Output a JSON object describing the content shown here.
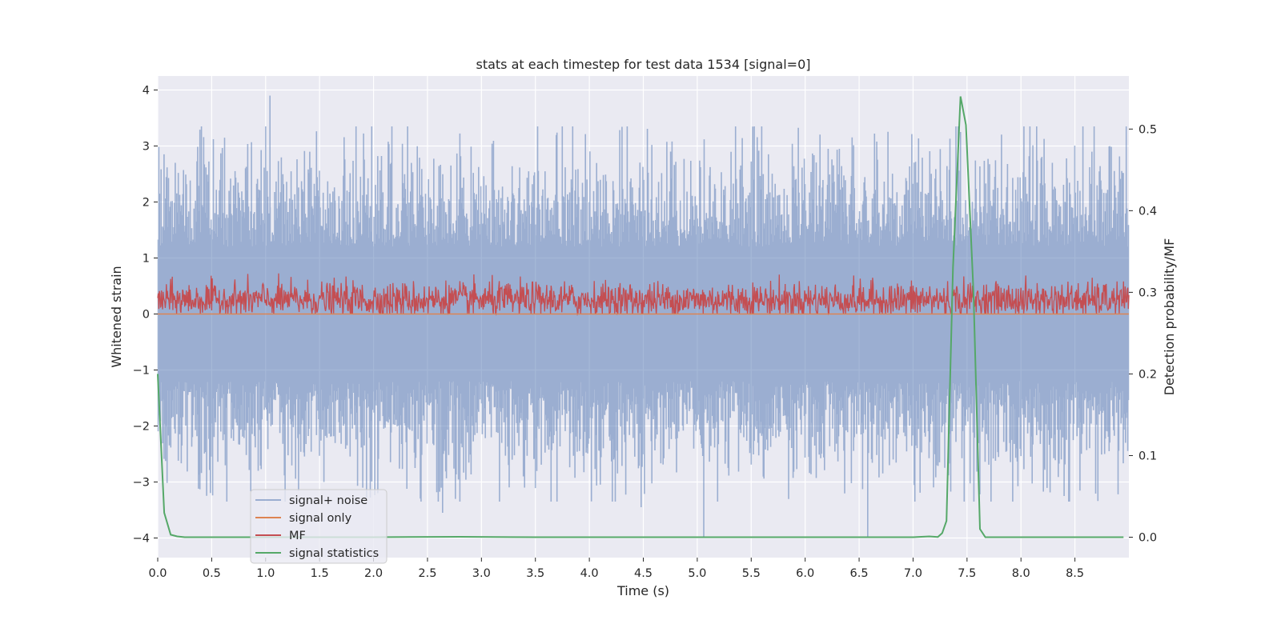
{
  "chart_data": {
    "type": "line",
    "title": "stats at each timestep for test data 1534 [signal=0]",
    "xlabel": "Time (s)",
    "ylabel": "Whitened strain",
    "y2label": "Detection probability/MF",
    "xlim": [
      0.0,
      9.0
    ],
    "ylim": [
      -4.35,
      4.25
    ],
    "y2lim": [
      -0.025,
      0.565
    ],
    "xticks": [
      "0.0",
      "0.5",
      "1.0",
      "1.5",
      "2.0",
      "2.5",
      "3.0",
      "3.5",
      "4.0",
      "4.5",
      "5.0",
      "5.5",
      "6.0",
      "6.5",
      "7.0",
      "7.5",
      "8.0",
      "8.5"
    ],
    "xtick_values": [
      0.0,
      0.5,
      1.0,
      1.5,
      2.0,
      2.5,
      3.0,
      3.5,
      4.0,
      4.5,
      5.0,
      5.5,
      6.0,
      6.5,
      7.0,
      7.5,
      8.0,
      8.5
    ],
    "yticks": [
      "4",
      "3",
      "2",
      "1",
      "0",
      "−1",
      "−2",
      "−3",
      "−4"
    ],
    "ytick_values": [
      4,
      3,
      2,
      1,
      0,
      -1,
      -2,
      -3,
      -4
    ],
    "y2ticks": [
      "0.5",
      "0.4",
      "0.3",
      "0.2",
      "0.1",
      "0.0"
    ],
    "y2tick_values": [
      0.5,
      0.4,
      0.3,
      0.2,
      0.1,
      0.0
    ],
    "grid": true,
    "legend_position": "lower-left",
    "background": "#eaeaf2",
    "series": [
      {
        "name": "signal+ noise",
        "axis": "left",
        "color": "#4c72b0",
        "alpha": 0.5,
        "description_range": [
          -4.0,
          3.9
        ],
        "spikes": [
          [
            1.04,
            3.9
          ],
          [
            1.54,
            -3.0
          ],
          [
            2.04,
            -3.2
          ],
          [
            2.64,
            -3.55
          ],
          [
            3.4,
            -3.1
          ],
          [
            4.48,
            -3.45
          ],
          [
            5.06,
            -4.0
          ],
          [
            6.58,
            -4.0
          ],
          [
            7.44,
            3.25
          ],
          [
            8.4,
            -3.25
          ]
        ]
      },
      {
        "name": "signal only",
        "axis": "left",
        "color": "#dd8452",
        "values_constant": 0.0
      },
      {
        "name": "MF",
        "axis": "left",
        "color": "#c44e52",
        "range": [
          0.0,
          1.0
        ]
      },
      {
        "name": "signal statistics",
        "axis": "right",
        "color": "#55a868",
        "x": [
          0.0,
          0.06,
          0.12,
          0.18,
          0.25,
          0.5,
          1.0,
          2.0,
          2.8,
          3.5,
          5.0,
          6.5,
          7.0,
          7.15,
          7.23,
          7.27,
          7.31,
          7.37,
          7.44,
          7.49,
          7.56,
          7.62,
          7.67,
          7.75,
          8.0,
          8.95
        ],
        "y": [
          0.2,
          0.03,
          0.003,
          0.001,
          0.0,
          0.0,
          0.0,
          0.0,
          0.0005,
          0.0,
          0.0,
          0.0,
          0.0,
          0.001,
          0.0003,
          0.005,
          0.02,
          0.33,
          0.54,
          0.505,
          0.3,
          0.01,
          0.0,
          0.0,
          0.0,
          0.0
        ]
      }
    ]
  }
}
